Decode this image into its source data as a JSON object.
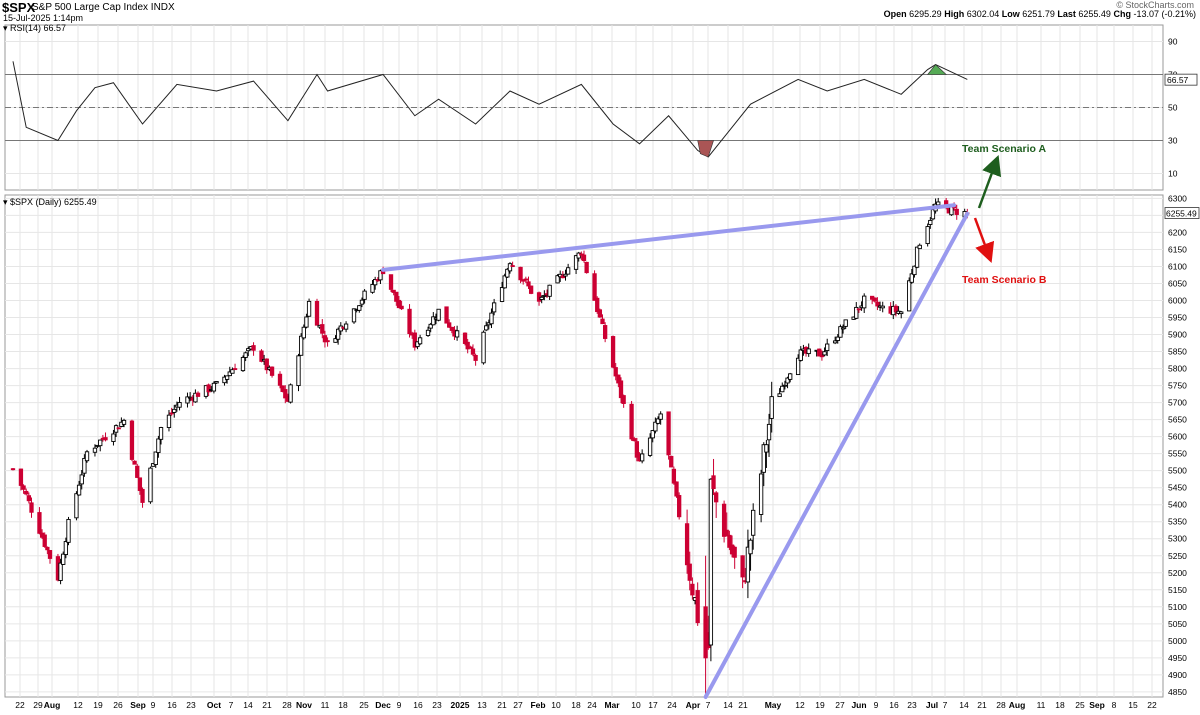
{
  "header": {
    "symbol": "$SPX",
    "name": "S&P 500 Large Cap Index",
    "exchange": "INDX",
    "date": "15-Jul-2025 1:14pm",
    "watermark": "© StockCharts.com",
    "open_label": "Open",
    "open": "6295.29",
    "high_label": "High",
    "high": "6302.04",
    "low_label": "Low",
    "low": "6251.79",
    "last_label": "Last",
    "last": "6255.49",
    "chg_label": "Chg",
    "chg": "-13.07 (-0.21%)"
  },
  "rsi_panel": {
    "label": "RSI(14) 66.57",
    "current_value": "66.57",
    "ticks": [
      "90",
      "70",
      "50",
      "30",
      "10"
    ]
  },
  "price_panel": {
    "label": "$SPX (Daily) 6255.49",
    "current_price": "6255.49",
    "ticks": [
      "6300",
      "6250",
      "6200",
      "6150",
      "6100",
      "6050",
      "6000",
      "5950",
      "5900",
      "5850",
      "5800",
      "5750",
      "5700",
      "5650",
      "5600",
      "5550",
      "5500",
      "5450",
      "5400",
      "5350",
      "5300",
      "5250",
      "5200",
      "5150",
      "5100",
      "5050",
      "5000",
      "4950",
      "4900",
      "4850"
    ]
  },
  "annotations": {
    "scenario_a": "Team Scenario A",
    "scenario_b": "Team Scenario B"
  },
  "colors": {
    "up": "#000000",
    "down": "#cc0033",
    "trendline": "#9999ee",
    "rsi_overbought_fill": "#55aa55",
    "rsi_oversold_fill": "#aa5555",
    "scenario_a": "#1e5e1e",
    "scenario_b": "#e01010"
  },
  "x_axis_labels": [
    "22",
    "29",
    "Aug",
    "12",
    "19",
    "26",
    "Sep",
    "9",
    "16",
    "23",
    "Oct",
    "7",
    "14",
    "21",
    "28",
    "Nov",
    "11",
    "18",
    "25",
    "Dec",
    "9",
    "16",
    "23",
    "2025",
    "13",
    "21",
    "27",
    "Feb",
    "10",
    "18",
    "24",
    "Mar",
    "10",
    "17",
    "24",
    "Apr",
    "7",
    "14",
    "21",
    "May",
    "12",
    "19",
    "27",
    "Jun",
    "9",
    "16",
    "23",
    "Jul",
    "7",
    "14",
    "21",
    "28",
    "Aug",
    "11",
    "18",
    "25",
    "Sep",
    "8",
    "15",
    "22"
  ],
  "chart_data": [
    {
      "type": "line",
      "title": "RSI(14) 66.57",
      "ylim": [
        0,
        100
      ],
      "reference_lines": [
        70,
        50,
        30
      ],
      "x": [
        "2024-07-19",
        "2024-07-24",
        "2024-08-05",
        "2024-08-12",
        "2024-08-19",
        "2024-08-26",
        "2024-09-06",
        "2024-09-19",
        "2024-10-04",
        "2024-10-18",
        "2024-10-31",
        "2024-11-11",
        "2024-11-15",
        "2024-12-06",
        "2024-12-18",
        "2024-12-27",
        "2025-01-10",
        "2025-01-23",
        "2025-02-03",
        "2025-02-19",
        "2025-03-03",
        "2025-03-13",
        "2025-03-24",
        "2025-04-04",
        "2025-04-08",
        "2025-04-24",
        "2025-05-12",
        "2025-05-23",
        "2025-06-06",
        "2025-06-20",
        "2025-06-30",
        "2025-07-03",
        "2025-07-15"
      ],
      "values": [
        78,
        38,
        30,
        48,
        62,
        65,
        40,
        64,
        60,
        66,
        42,
        70,
        60,
        70,
        45,
        55,
        40,
        60,
        52,
        64,
        40,
        28,
        45,
        24,
        20,
        52,
        67,
        60,
        67,
        58,
        73,
        76,
        67
      ]
    },
    {
      "type": "candlestick",
      "title": "$SPX (Daily) 6255.49",
      "ylim": [
        4835,
        6310
      ],
      "grid": true,
      "x": [
        "2024-07-19",
        "2024-07-24",
        "2024-08-05",
        "2024-08-09",
        "2024-08-16",
        "2024-08-30",
        "2024-09-06",
        "2024-09-13",
        "2024-09-20",
        "2024-10-04",
        "2024-10-18",
        "2024-10-31",
        "2024-11-08",
        "2024-11-15",
        "2024-12-06",
        "2024-12-18",
        "2024-12-27",
        "2025-01-10",
        "2025-01-23",
        "2025-02-03",
        "2025-02-19",
        "2025-03-04",
        "2025-03-13",
        "2025-03-21",
        "2025-04-04",
        "2025-04-08",
        "2025-04-09",
        "2025-04-21",
        "2025-05-02",
        "2025-05-12",
        "2025-05-21",
        "2025-06-06",
        "2025-06-13",
        "2025-06-20",
        "2025-06-27",
        "2025-07-03",
        "2025-07-15"
      ],
      "values": [
        5505,
        5427,
        5186,
        5344,
        5554,
        5648,
        5408,
        5626,
        5702,
        5751,
        5864,
        5705,
        5995,
        5870,
        6090,
        5872,
        5970,
        5827,
        6118,
        5994,
        6144,
        5778,
        5521,
        5667,
        5074,
        4982,
        5456,
        5158,
        5686,
        5844,
        5844,
        6000,
        5977,
        5967,
        6173,
        6279,
        6255
      ],
      "trendlines": [
        {
          "from": [
            "2024-12-06",
            6090
          ],
          "to": [
            "2025-07-10",
            6280
          ]
        },
        {
          "from": [
            "2025-04-07",
            4835
          ],
          "to": [
            "2025-07-15",
            6255
          ]
        }
      ]
    }
  ]
}
